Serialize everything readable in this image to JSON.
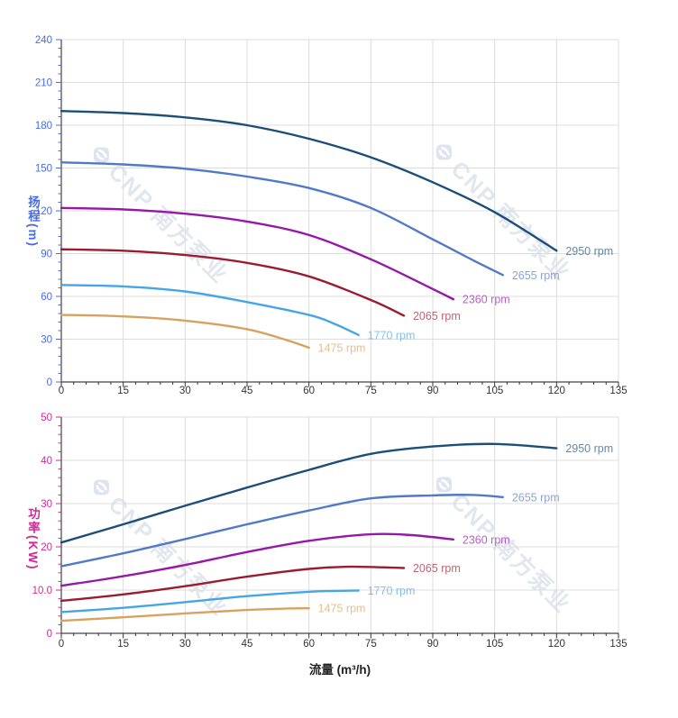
{
  "watermark": {
    "text": "CNP 南方泵业",
    "color": "#e2e6ee"
  },
  "style": {
    "grid_color": "#dcdcdc",
    "axis_line_color": "#444444",
    "x_tick_label_color": "#333333",
    "curve_label_opacity": 0.68
  },
  "chart_data": [
    {
      "id": "head",
      "type": "line",
      "title": "",
      "xlabel": "",
      "ylabel": "扬程(m)",
      "axis_color": "#4a6be0",
      "legend_position": "curve-ends",
      "grid": true,
      "xlim": [
        0,
        135
      ],
      "x_major": 15,
      "x_minor": 3,
      "ylim": [
        0,
        240
      ],
      "y_major": 30,
      "y_minor": 6,
      "x_tick_labels": [
        "0",
        "15",
        "30",
        "45",
        "60",
        "75",
        "90",
        "105",
        "120",
        "135"
      ],
      "y_tick_labels": [
        "0",
        "30",
        "60",
        "90",
        "120",
        "150",
        "180",
        "210",
        "240"
      ],
      "series": [
        {
          "name": "2950 rpm",
          "color": "#1b4e79",
          "points": [
            [
              0,
              190
            ],
            [
              15,
              188.5
            ],
            [
              30,
              185.5
            ],
            [
              45,
              180
            ],
            [
              60,
              170.5
            ],
            [
              75,
              157.5
            ],
            [
              90,
              140
            ],
            [
              105,
              119
            ],
            [
              120,
              92
            ]
          ]
        },
        {
          "name": "2655 rpm",
          "color": "#5279c8",
          "points": [
            [
              0,
              154
            ],
            [
              15,
              152.5
            ],
            [
              30,
              149.5
            ],
            [
              45,
              144
            ],
            [
              60,
              136
            ],
            [
              75,
              122
            ],
            [
              90,
              100
            ],
            [
              100,
              85
            ],
            [
              107,
              75
            ]
          ]
        },
        {
          "name": "2360 rpm",
          "color": "#9518a8",
          "points": [
            [
              0,
              122
            ],
            [
              15,
              121
            ],
            [
              30,
              118
            ],
            [
              45,
              112.5
            ],
            [
              60,
              103
            ],
            [
              75,
              86
            ],
            [
              88,
              68
            ],
            [
              95,
              58
            ]
          ]
        },
        {
          "name": "2065 rpm",
          "color": "#9b1c31",
          "points": [
            [
              0,
              93
            ],
            [
              15,
              92
            ],
            [
              30,
              89
            ],
            [
              45,
              83.5
            ],
            [
              60,
              74
            ],
            [
              75,
              57.5
            ],
            [
              83,
              46.5
            ]
          ]
        },
        {
          "name": "1770 rpm",
          "color": "#45a5e6",
          "points": [
            [
              0,
              68
            ],
            [
              15,
              67
            ],
            [
              30,
              63.5
            ],
            [
              45,
              56
            ],
            [
              60,
              47
            ],
            [
              66,
              41
            ],
            [
              72,
              33
            ]
          ]
        },
        {
          "name": "1475 rpm",
          "color": "#d9a15e",
          "points": [
            [
              0,
              47
            ],
            [
              15,
              46
            ],
            [
              30,
              43
            ],
            [
              45,
              37
            ],
            [
              55,
              29
            ],
            [
              60,
              24
            ]
          ]
        }
      ]
    },
    {
      "id": "power",
      "type": "line",
      "title": "",
      "xlabel": "流量 (m³/h)",
      "ylabel": "功率(KW)",
      "axis_color": "#d02a94",
      "legend_position": "curve-ends",
      "grid": true,
      "xlim": [
        0,
        135
      ],
      "x_major": 15,
      "x_minor": 3,
      "ylim": [
        0,
        50
      ],
      "y_major": 10,
      "y_minor": 2,
      "x_tick_labels": [
        "0",
        "15",
        "30",
        "45",
        "60",
        "75",
        "90",
        "105",
        "120",
        "135"
      ],
      "y_tick_labels": [
        "0",
        "10.0",
        "20",
        "30",
        "40",
        "50"
      ],
      "series": [
        {
          "name": "2950 rpm",
          "color": "#1b4e79",
          "points": [
            [
              0,
              21
            ],
            [
              15,
              25.2
            ],
            [
              30,
              29.5
            ],
            [
              45,
              33.7
            ],
            [
              60,
              37.8
            ],
            [
              75,
              41.5
            ],
            [
              90,
              43.2
            ],
            [
              105,
              43.8
            ],
            [
              120,
              42.8
            ]
          ]
        },
        {
          "name": "2655 rpm",
          "color": "#5279c8",
          "points": [
            [
              0,
              15.5
            ],
            [
              15,
              18.5
            ],
            [
              30,
              21.8
            ],
            [
              45,
              25.2
            ],
            [
              60,
              28.4
            ],
            [
              75,
              31.2
            ],
            [
              90,
              31.9
            ],
            [
              100,
              32
            ],
            [
              107,
              31.5
            ]
          ]
        },
        {
          "name": "2360 rpm",
          "color": "#9518a8",
          "points": [
            [
              0,
              11
            ],
            [
              15,
              13.2
            ],
            [
              30,
              15.8
            ],
            [
              45,
              18.8
            ],
            [
              60,
              21.4
            ],
            [
              75,
              22.9
            ],
            [
              85,
              22.7
            ],
            [
              95,
              21.7
            ]
          ]
        },
        {
          "name": "2065 rpm",
          "color": "#9b1c31",
          "points": [
            [
              0,
              7.5
            ],
            [
              15,
              9
            ],
            [
              30,
              10.9
            ],
            [
              45,
              13.1
            ],
            [
              60,
              14.9
            ],
            [
              70,
              15.4
            ],
            [
              83,
              15.1
            ]
          ]
        },
        {
          "name": "1770 rpm",
          "color": "#45a5e6",
          "points": [
            [
              0,
              4.9
            ],
            [
              15,
              5.9
            ],
            [
              30,
              7.2
            ],
            [
              45,
              8.6
            ],
            [
              60,
              9.6
            ],
            [
              66,
              9.8
            ],
            [
              72,
              9.9
            ]
          ]
        },
        {
          "name": "1475 rpm",
          "color": "#d9a15e",
          "points": [
            [
              0,
              2.9
            ],
            [
              15,
              3.7
            ],
            [
              30,
              4.6
            ],
            [
              45,
              5.4
            ],
            [
              55,
              5.75
            ],
            [
              60,
              5.8
            ]
          ]
        }
      ]
    }
  ]
}
